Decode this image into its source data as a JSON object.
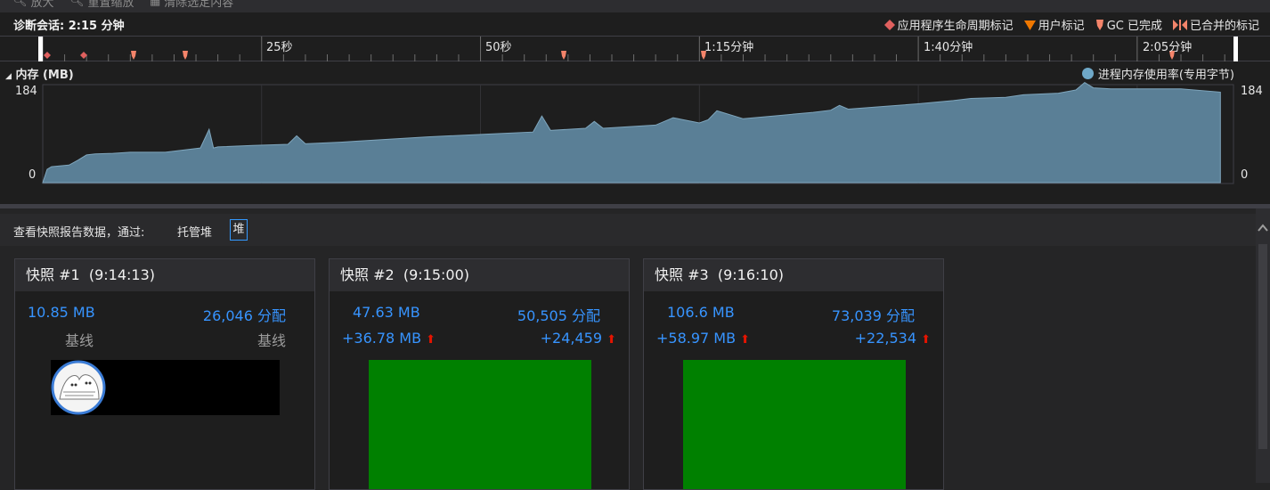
{
  "toolbar": {
    "item1_label": "放大",
    "item2_label": "重置缩放",
    "item3_label": "清除选定内容"
  },
  "session": {
    "title": "诊断会话: 2:15 分钟"
  },
  "legend_top": {
    "lifecycle": "应用程序生命周期标记",
    "user": "用户标记",
    "gc": "GC 已完成",
    "merged": "已合并的标记",
    "colors": {
      "lifecycle": "#e0605e",
      "user": "#f07800",
      "gc": "#f4846a",
      "merged": "#f4846a"
    }
  },
  "ruler": {
    "ticks": [
      "25秒",
      "50秒",
      "1:15分钟",
      "1:40分钟",
      "2:05分钟"
    ]
  },
  "memory": {
    "title": "内存 (MB)",
    "legend": "进程内存使用率(专用字节)",
    "y_max_label": "184",
    "y_min_label": "0",
    "fill_color": "#5a7f96"
  },
  "chart_data": {
    "type": "area",
    "title": "内存 (MB)",
    "xlabel": "",
    "ylabel": "",
    "ylim": [
      0,
      184
    ],
    "x_unit": "秒",
    "series": [
      {
        "name": "进程内存使用率(专用字节)",
        "x": [
          0,
          0.5,
          1,
          3,
          4,
          5,
          6,
          8,
          10,
          14,
          18,
          19,
          19.5,
          20,
          24,
          28,
          29,
          30,
          34,
          36,
          40,
          44,
          52,
          56,
          57,
          58,
          62,
          63,
          64,
          70,
          72,
          75,
          76,
          77,
          80,
          84,
          88,
          90,
          91,
          92,
          96,
          100,
          104,
          106,
          110,
          112,
          116,
          118,
          119,
          120,
          122,
          124,
          130,
          134.5
        ],
        "values": [
          0,
          25,
          30,
          33,
          42,
          52,
          54,
          55,
          57,
          57,
          65,
          100,
          65,
          67,
          70,
          72,
          88,
          73,
          76,
          78,
          82,
          86,
          92,
          95,
          125,
          98,
          102,
          115,
          102,
          108,
          122,
          112,
          118,
          135,
          120,
          126,
          132,
          136,
          145,
          138,
          143,
          148,
          154,
          158,
          160,
          165,
          168,
          174,
          188,
          178,
          176,
          176,
          176,
          170
        ]
      }
    ]
  },
  "filter": {
    "label": "查看快照报告数据，通过:",
    "option_managed": "托管堆",
    "option_heap": "堆"
  },
  "snapshots": [
    {
      "title": "快照 #1",
      "time": "(9:14:13)",
      "size": "10.85 MB",
      "allocs": "26,046 分配",
      "size_delta": "基线",
      "alloc_delta": "基线"
    },
    {
      "title": "快照 #2",
      "time": "(9:15:00)",
      "size": "47.63 MB",
      "allocs": "50,505 分配",
      "size_delta": "+36.78 MB",
      "alloc_delta": "+24,459"
    },
    {
      "title": "快照 #3",
      "time": "(9:16:10)",
      "size": "106.6 MB",
      "allocs": "73,039 分配",
      "size_delta": "+58.97 MB",
      "alloc_delta": "+22,534"
    }
  ],
  "icons": {
    "lifecycle_marker": "diamond-icon",
    "user_marker": "triangle-down-icon",
    "gc_marker": "gc-flag-icon",
    "merged_marker": "merged-marker-icon",
    "increase": "arrow-up-icon",
    "scroll_up": "chevron-up-icon"
  }
}
